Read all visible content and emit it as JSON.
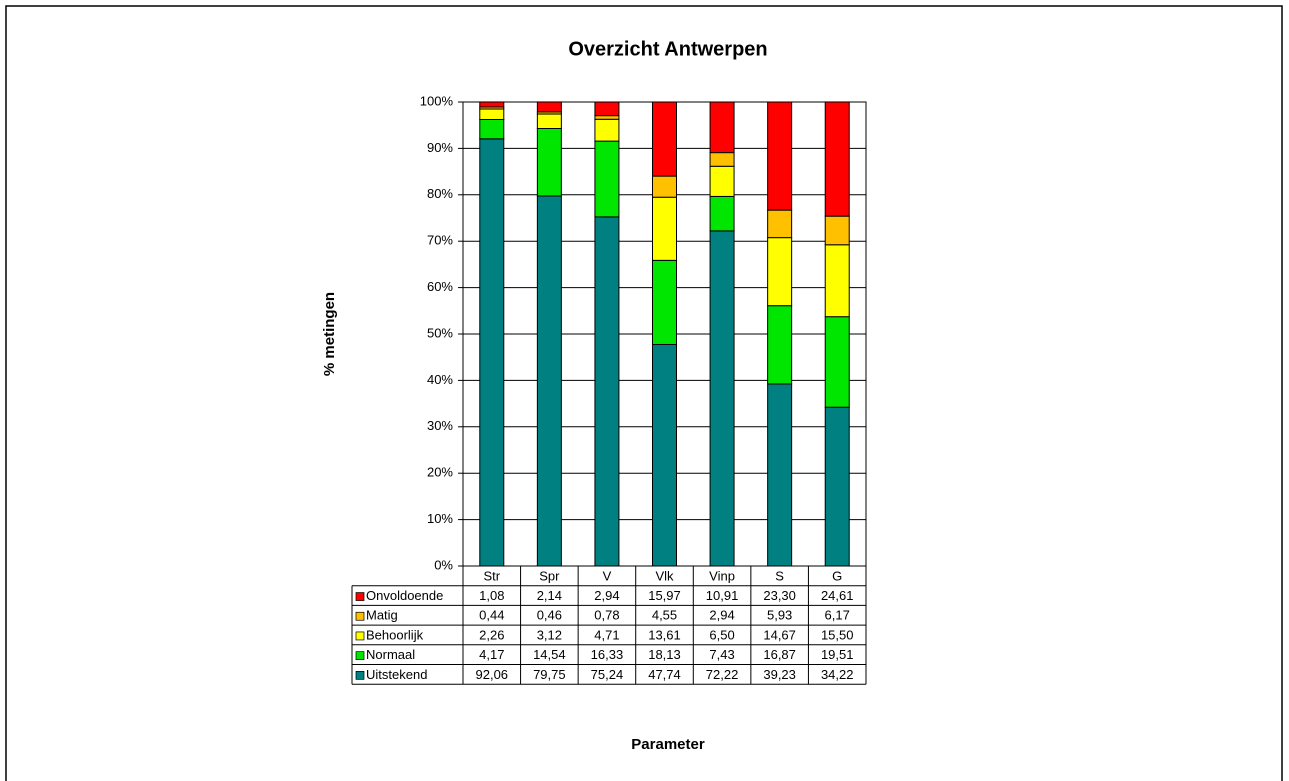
{
  "chart_data": {
    "type": "stacked_bar",
    "title": "Overzicht Antwerpen",
    "x_label": "Parameter",
    "y_label": "% metingen",
    "categories": [
      "Str",
      "Spr",
      "V",
      "Vlk",
      "Vinp",
      "S",
      "G"
    ],
    "series": [
      {
        "name": "Uitstekend",
        "color": "#008080",
        "values": [
          92.06,
          79.75,
          75.24,
          47.74,
          72.22,
          39.23,
          34.22
        ],
        "value_labels": [
          "92,06",
          "79,75",
          "75,24",
          "47,74",
          "72,22",
          "39,23",
          "34,22"
        ]
      },
      {
        "name": "Normaal",
        "color": "#00e600",
        "values": [
          4.17,
          14.54,
          16.33,
          18.13,
          7.43,
          16.87,
          19.51
        ],
        "value_labels": [
          "4,17",
          "14,54",
          "16,33",
          "18,13",
          "7,43",
          "16,87",
          "19,51"
        ]
      },
      {
        "name": "Behoorlijk",
        "color": "#ffff00",
        "values": [
          2.26,
          3.12,
          4.71,
          13.61,
          6.5,
          14.67,
          15.5
        ],
        "value_labels": [
          "2,26",
          "3,12",
          "4,71",
          "13,61",
          "6,50",
          "14,67",
          "15,50"
        ]
      },
      {
        "name": "Matig",
        "color": "#ffc000",
        "values": [
          0.44,
          0.46,
          0.78,
          4.55,
          2.94,
          5.93,
          6.17
        ],
        "value_labels": [
          "0,44",
          "0,46",
          "0,78",
          "4,55",
          "2,94",
          "5,93",
          "6,17"
        ]
      },
      {
        "name": "Onvoldoende",
        "color": "#ff0000",
        "values": [
          1.08,
          2.14,
          2.94,
          15.97,
          10.91,
          23.3,
          24.61
        ],
        "value_labels": [
          "1,08",
          "2,14",
          "2,94",
          "15,97",
          "10,91",
          "23,30",
          "24,61"
        ]
      }
    ],
    "ylim": [
      0,
      100
    ],
    "yticks": [
      {
        "value": 0,
        "label": "0%"
      },
      {
        "value": 10,
        "label": "10%"
      },
      {
        "value": 20,
        "label": "20%"
      },
      {
        "value": 30,
        "label": "30%"
      },
      {
        "value": 40,
        "label": "40%"
      },
      {
        "value": 50,
        "label": "50%"
      },
      {
        "value": 60,
        "label": "60%"
      },
      {
        "value": 70,
        "label": "70%"
      },
      {
        "value": 80,
        "label": "80%"
      },
      {
        "value": 90,
        "label": "90%"
      },
      {
        "value": 100,
        "label": "100%"
      }
    ],
    "grid": true
  }
}
